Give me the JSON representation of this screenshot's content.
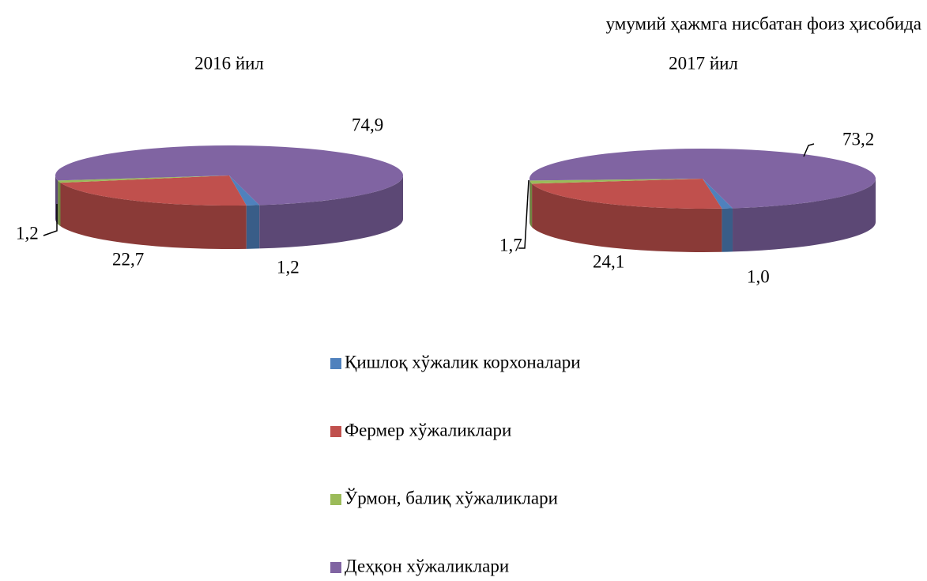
{
  "subtitle": "умумий ҳажмга нисбатан фоиз ҳисобида",
  "categories": [
    "Қишлоқ хўжалик корхоналари",
    "Фермер хўжаликлари",
    "Ўрмон, балиқ хўжаликлари",
    "Деҳқон хўжаликлари"
  ],
  "colors": [
    "#4f81bd",
    "#c0504d",
    "#9bbb59",
    "#8064a2"
  ],
  "chart_data": [
    {
      "type": "pie",
      "title": "2016 йил",
      "values": [
        1.2,
        22.7,
        1.2,
        74.9
      ],
      "value_labels": [
        "1,2",
        "22,7",
        "1,2",
        "74,9"
      ]
    },
    {
      "type": "pie",
      "title": "2017 йил",
      "values": [
        1.0,
        24.1,
        1.7,
        73.2
      ],
      "value_labels": [
        "1,0",
        "24,1",
        "1,7",
        "73,2"
      ]
    }
  ]
}
